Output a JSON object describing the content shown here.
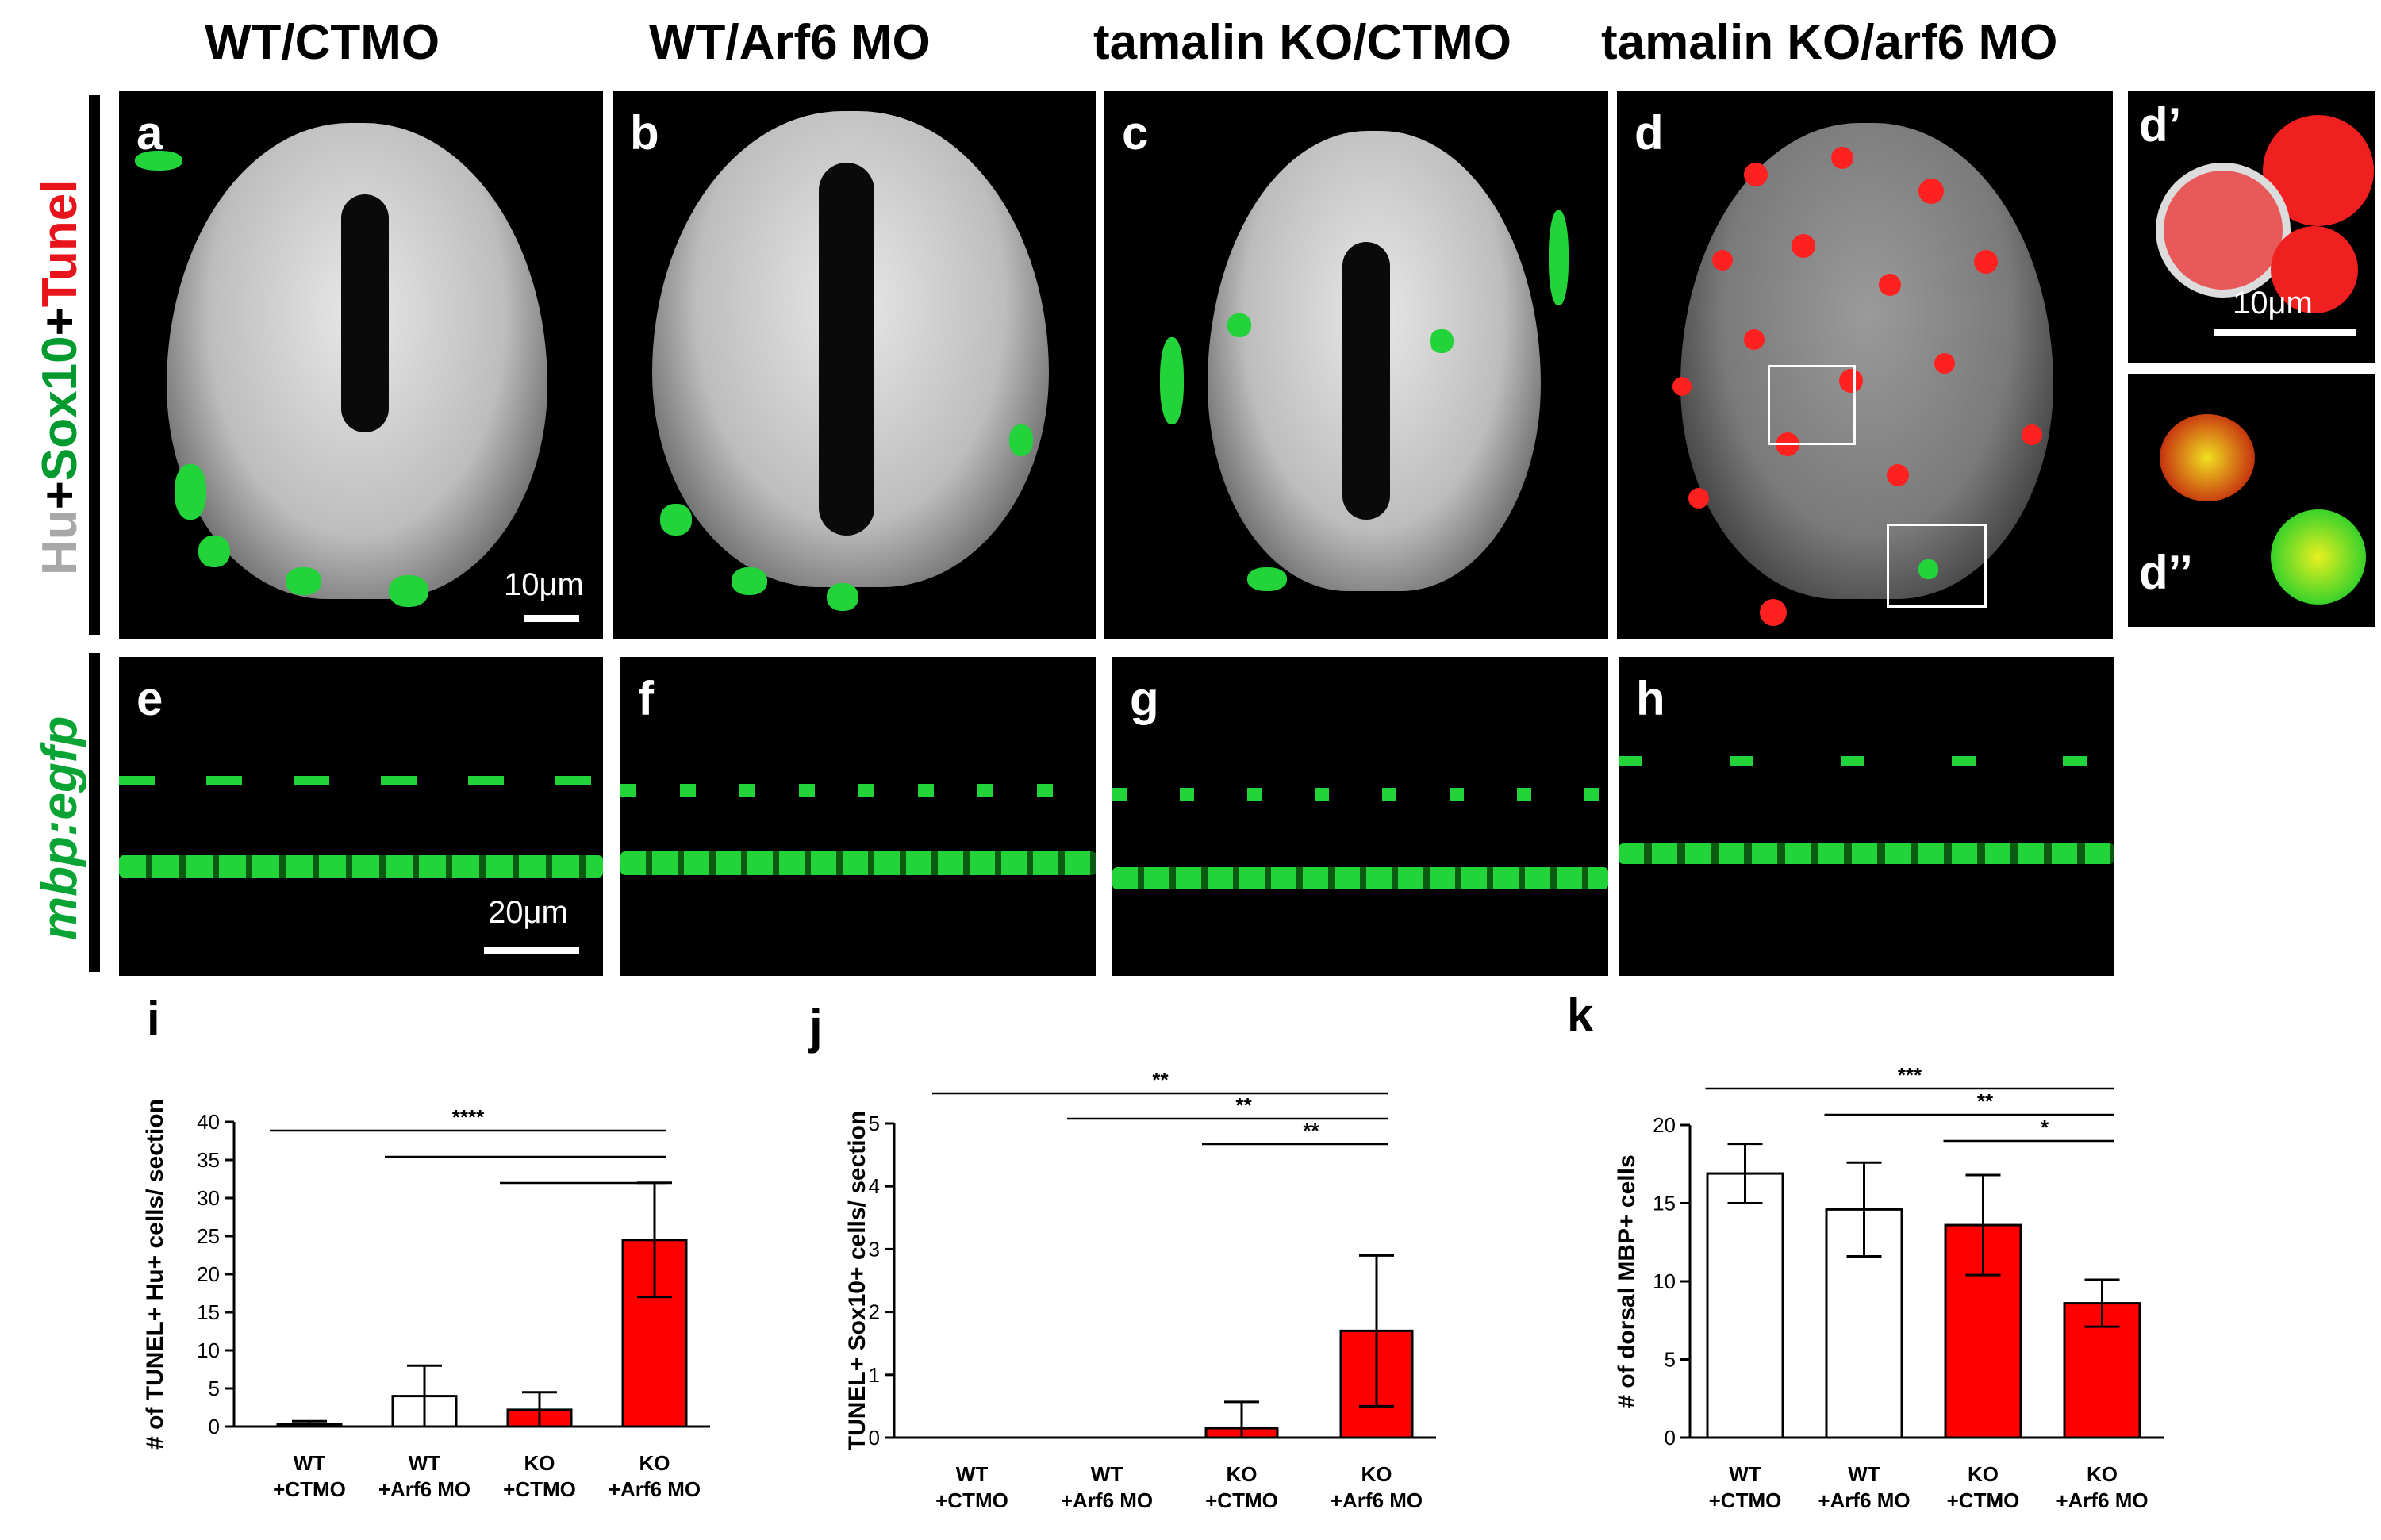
{
  "column_titles": [
    "WT/CTMO",
    "WT/Arf6 MO",
    "tamalin KO/CTMO",
    "tamalin KO/arf6 MO"
  ],
  "row_labels": {
    "row1": {
      "hu": "Hu",
      "plus1": "+",
      "sox10": "Sox10",
      "plus2": "+",
      "tunel": "Tunel"
    },
    "row2": "mbp:egfp"
  },
  "panel_labels": {
    "a": "a",
    "b": "b",
    "c": "c",
    "d": "d",
    "d_prime": "d’",
    "d_dprime": "d’’",
    "e": "e",
    "f": "f",
    "g": "g",
    "h": "h"
  },
  "scale_labels": {
    "panel_a": "10μm",
    "panel_d_prime": "10μm",
    "panel_e": "20μm"
  },
  "colors": {
    "gray": "#d8d8d8",
    "green": "#22d33a",
    "red": "#ff2020",
    "bar_red": "#ff0000",
    "black": "#000000"
  },
  "chart_data": [
    {
      "id": "i",
      "type": "bar",
      "letter": "i",
      "categories": [
        [
          "WT",
          "+CTMO"
        ],
        [
          "WT",
          "+Arf6 MO"
        ],
        [
          "KO",
          "+CTMO"
        ],
        [
          "KO",
          "+Arf6 MO"
        ]
      ],
      "values": [
        0.3,
        4,
        2.2,
        24.5
      ],
      "errors": [
        0.4,
        4,
        2.3,
        7.5
      ],
      "fills": [
        "white",
        "white",
        "red",
        "red"
      ],
      "ylabel": "# of TUNEL+ Hu+ cells/ section",
      "ylim": [
        0,
        40
      ],
      "yticks": [
        0,
        5,
        10,
        15,
        20,
        25,
        30,
        35,
        40
      ],
      "yticklabels": [
        "0",
        "5",
        "10",
        "15",
        "20",
        "25",
        "30",
        "35",
        "40"
      ],
      "significance": [
        {
          "from": 0,
          "to": 3,
          "label": "****",
          "level": 0
        },
        {
          "from": 1,
          "to": 3,
          "label": "",
          "level": 1
        },
        {
          "from": 2,
          "to": 3,
          "label": "",
          "level": 2
        }
      ]
    },
    {
      "id": "j",
      "type": "bar",
      "letter": "j",
      "categories": [
        [
          "WT",
          "+CTMO"
        ],
        [
          "WT",
          "+Arf6 MO"
        ],
        [
          "KO",
          "+CTMO"
        ],
        [
          "KO",
          "+Arf6 MO"
        ]
      ],
      "values": [
        0,
        0,
        0.15,
        1.7
      ],
      "errors": [
        0,
        0,
        0.42,
        1.2
      ],
      "fills": [
        "white",
        "white",
        "red",
        "red"
      ],
      "ylabel": "TUNEL+ Sox10+ cells/ section",
      "ylim": [
        0,
        5
      ],
      "yticks": [
        0,
        1,
        2,
        3,
        4,
        5
      ],
      "yticklabels": [
        "0",
        "1",
        "2",
        "3",
        "4",
        "5"
      ],
      "significance": [
        {
          "from": 0,
          "to": 3,
          "label": "**",
          "level": 0
        },
        {
          "from": 1,
          "to": 3,
          "label": "**",
          "level": 1
        },
        {
          "from": 2,
          "to": 3,
          "label": "**",
          "level": 2
        }
      ]
    },
    {
      "id": "k",
      "type": "bar",
      "letter": "k",
      "categories": [
        [
          "WT",
          "+CTMO"
        ],
        [
          "WT",
          "+Arf6 MO"
        ],
        [
          "KO",
          "+CTMO"
        ],
        [
          "KO",
          "+Arf6 MO"
        ]
      ],
      "values": [
        16.9,
        14.6,
        13.6,
        8.6
      ],
      "errors": [
        1.9,
        3.0,
        3.2,
        1.5
      ],
      "fills": [
        "white",
        "white",
        "red",
        "red"
      ],
      "ylabel": "# of dorsal MBP+ cells",
      "ylim": [
        0,
        20
      ],
      "yticks": [
        0,
        5,
        10,
        15,
        20
      ],
      "yticklabels": [
        "0",
        "5",
        "10",
        "15",
        "20"
      ],
      "significance": [
        {
          "from": 0,
          "to": 3,
          "label": "***",
          "level": 0
        },
        {
          "from": 1,
          "to": 3,
          "label": "**",
          "level": 1
        },
        {
          "from": 2,
          "to": 3,
          "label": "*",
          "level": 2
        }
      ]
    }
  ]
}
